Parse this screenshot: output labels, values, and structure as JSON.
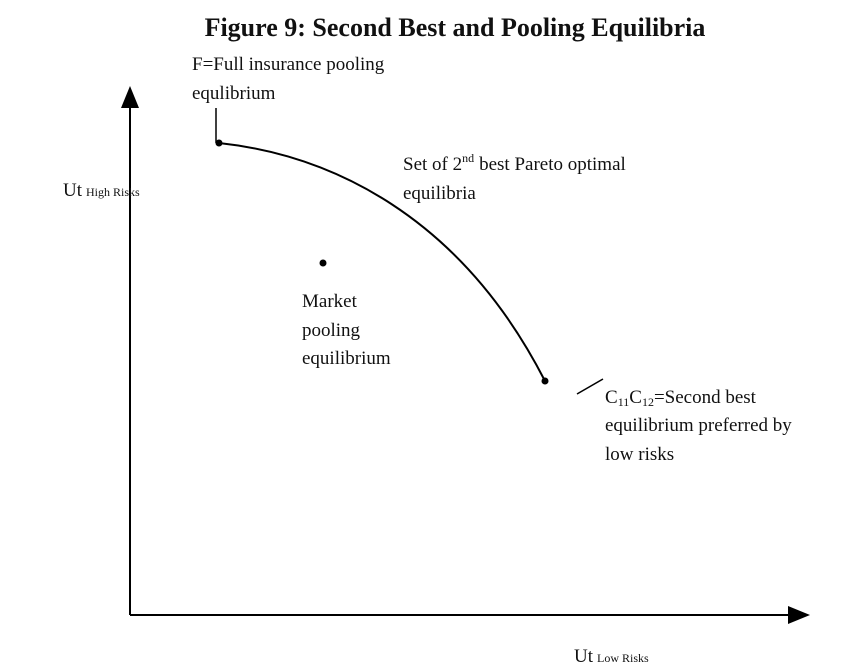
{
  "title": "Figure 9: Second Best and Pooling Equilibria",
  "y_axis": {
    "main": "Ut",
    "sub": "High Risks"
  },
  "x_axis": {
    "main": "Ut",
    "sub": "Low Risks"
  },
  "full_insurance_label": {
    "line1": "F=Full insurance pooling",
    "line2": "equlibrium"
  },
  "curve_label": {
    "before": "Set of 2",
    "sup": "nd",
    "after": "best Pareto optimal",
    "line2": "equilibria"
  },
  "market_label": {
    "line1": "Market",
    "line2": "pooling",
    "line3": "equilibrium"
  },
  "second_best_label": {
    "c1": "C",
    "s1": "11",
    "c2": "C",
    "s2": "12",
    "rest": "=Second best",
    "line2": "equilibrium preferred by",
    "line3": "low risks"
  }
}
